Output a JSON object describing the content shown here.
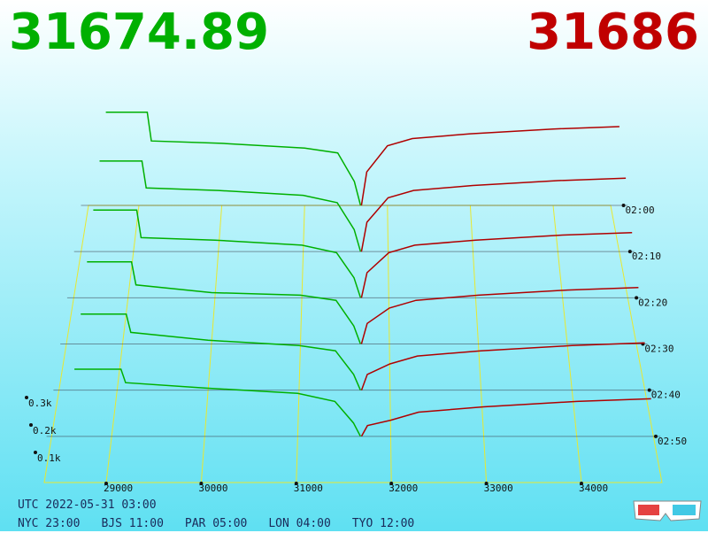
{
  "header": {
    "bid_price": "31674.89",
    "ask_price": "31686"
  },
  "chart_data": {
    "type": "depth3d",
    "xticks": [
      29000,
      30000,
      31000,
      32000,
      33000,
      34000
    ],
    "zticks": [
      {
        "value": 100,
        "label": "0.1k"
      },
      {
        "value": 200,
        "label": "0.2k"
      },
      {
        "value": 300,
        "label": "0.3k"
      }
    ],
    "bid_color": "#00b000",
    "ask_color": "#b00000",
    "bid_prices": [
      28600,
      29100,
      29150,
      30000,
      31000,
      31400,
      31600,
      31675
    ],
    "ask_prices": [
      31686,
      31750,
      32000,
      32300,
      33000,
      34000,
      34800
    ],
    "snapshots": [
      {
        "time": "02:00",
        "bids": [
          390,
          390,
          270,
          260,
          240,
          220,
          100,
          0
        ],
        "asks": [
          0,
          140,
          250,
          280,
          300,
          320,
          330
        ]
      },
      {
        "time": "02:10",
        "bids": [
          370,
          370,
          260,
          250,
          230,
          200,
          90,
          0
        ],
        "asks": [
          0,
          120,
          220,
          250,
          270,
          290,
          300
        ]
      },
      {
        "time": "02:20",
        "bids": [
          350,
          350,
          240,
          230,
          210,
          180,
          80,
          0
        ],
        "asks": [
          0,
          100,
          180,
          210,
          230,
          250,
          260
        ]
      },
      {
        "time": "02:30",
        "bids": [
          320,
          320,
          230,
          200,
          190,
          170,
          70,
          0
        ],
        "asks": [
          0,
          80,
          140,
          170,
          190,
          210,
          220
        ]
      },
      {
        "time": "02:40",
        "bids": [
          290,
          290,
          220,
          190,
          170,
          150,
          60,
          0
        ],
        "asks": [
          0,
          60,
          100,
          130,
          150,
          170,
          180
        ]
      },
      {
        "time": "02:50",
        "bids": [
          250,
          250,
          200,
          180,
          160,
          130,
          50,
          0
        ],
        "asks": [
          0,
          40,
          60,
          90,
          110,
          130,
          140
        ]
      }
    ]
  },
  "footer": {
    "utc": "UTC 2022-05-31 03:00",
    "cities": [
      "NYC 23:00",
      "BJS 11:00",
      "PAR 05:00",
      "LON 04:00",
      "TYO 12:00"
    ]
  }
}
